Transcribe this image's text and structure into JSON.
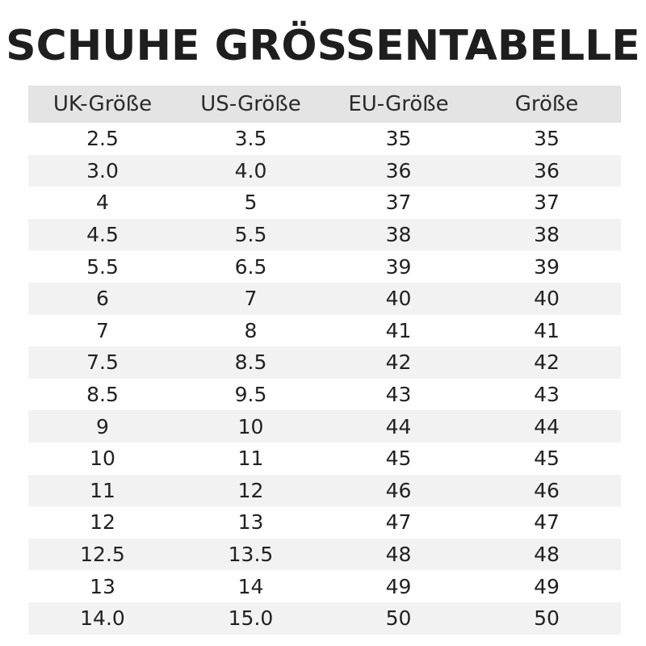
{
  "title": "SCHUHE GRÖSSENTABELLE",
  "headers": [
    "UK-Größe",
    "US-Größe",
    "EU-Größe",
    "Größe"
  ],
  "rows": [
    [
      "2.5",
      "3.5",
      "35",
      "35"
    ],
    [
      "3.0",
      "4.0",
      "36",
      "36"
    ],
    [
      "4",
      "5",
      "37",
      "37"
    ],
    [
      "4.5",
      "5.5",
      "38",
      "38"
    ],
    [
      "5.5",
      "6.5",
      "39",
      "39"
    ],
    [
      "6",
      "7",
      "40",
      "40"
    ],
    [
      "7",
      "8",
      "41",
      "41"
    ],
    [
      "7.5",
      "8.5",
      "42",
      "42"
    ],
    [
      "8.5",
      "9.5",
      "43",
      "43"
    ],
    [
      "9",
      "10",
      "44",
      "44"
    ],
    [
      "10",
      "11",
      "45",
      "45"
    ],
    [
      "11",
      "12",
      "46",
      "46"
    ],
    [
      "12",
      "13",
      "47",
      "47"
    ],
    [
      "12.5",
      "13.5",
      "48",
      "48"
    ],
    [
      "13",
      "14",
      "49",
      "49"
    ],
    [
      "14.0",
      "15.0",
      "50",
      "50"
    ]
  ],
  "colors": {
    "header_bg": "#e4e4e4",
    "stripe_bg": "#f2f2f2",
    "text": "#222222"
  }
}
